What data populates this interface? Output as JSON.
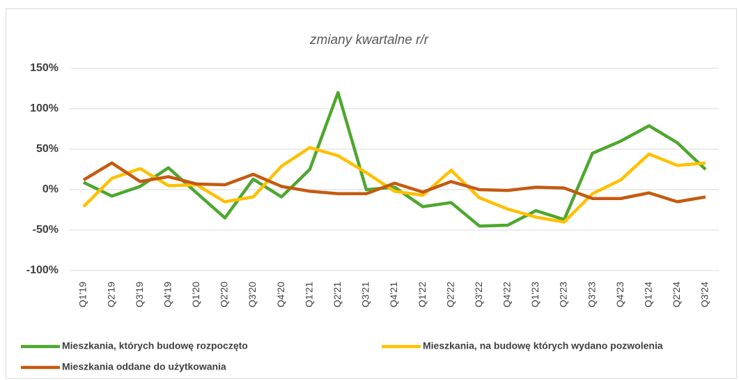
{
  "chart_data": {
    "type": "line",
    "title": "zmiany kwartalne r/r",
    "categories": [
      "Q1'19",
      "Q2'19",
      "Q3'19",
      "Q4'19",
      "Q1'20",
      "Q2'20",
      "Q3'20",
      "Q4'20",
      "Q1'21",
      "Q2'21",
      "Q3'21",
      "Q4'21",
      "Q1'22",
      "Q2'22",
      "Q3'22",
      "Q4'22",
      "Q1'23",
      "Q2'23",
      "Q3'23",
      "Q4'23",
      "Q1'24",
      "Q2'24",
      "Q3'24"
    ],
    "series": [
      {
        "name": "Mieszkania, których budowę rozpoczęto",
        "color": "#4ea72e",
        "values": [
          9,
          -8,
          4,
          27,
          -4,
          -35,
          13,
          -9,
          25,
          120,
          0,
          3,
          -21,
          -16,
          -45,
          -44,
          -26,
          -37,
          45,
          60,
          79,
          58,
          25
        ]
      },
      {
        "name": "Mieszkania, na budowę których wydano pozwolenia",
        "color": "#ffc000",
        "values": [
          -21,
          14,
          26,
          5,
          6,
          -15,
          -9,
          29,
          52,
          42,
          21,
          -2,
          -7,
          24,
          -10,
          -24,
          -34,
          -40,
          -5,
          12,
          44,
          30,
          33
        ]
      },
      {
        "name": "Mieszkania oddane do użytkowania",
        "color": "#c55a11",
        "values": [
          12,
          33,
          10,
          16,
          7,
          6,
          19,
          4,
          -2,
          -5,
          -5,
          8,
          -3,
          10,
          0,
          -1,
          3,
          2,
          -11,
          -11,
          -4,
          -15,
          -9
        ]
      }
    ],
    "ylim": [
      -100,
      150
    ],
    "yticks": [
      {
        "value": -100,
        "label": "-100%"
      },
      {
        "value": -50,
        "label": "-50%"
      },
      {
        "value": 0,
        "label": "0%"
      },
      {
        "value": 50,
        "label": "50%"
      },
      {
        "value": 100,
        "label": "100%"
      },
      {
        "value": 150,
        "label": "150%"
      }
    ],
    "grid": true
  }
}
